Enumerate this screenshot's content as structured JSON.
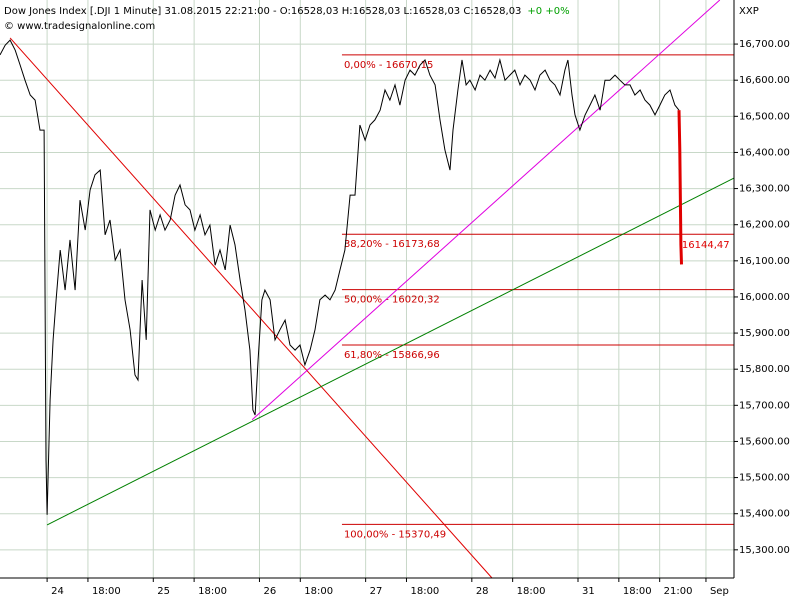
{
  "chart_data": {
    "type": "line",
    "title": "Dow Jones Index [.DJI  1 Minute] 31.08.2015 22:21:00 - O:16528,03 H:16528,03 L:16528,03 C:16528,03",
    "change": "+0 +0%",
    "change_color": "#00a000",
    "source": "© www.tradesignalonline.com",
    "axis_label": "XXP",
    "xlim": [
      -173,
      2523
    ],
    "ylim": [
      15222,
      16822
    ],
    "grid": true,
    "xticks": [
      {
        "value": 0,
        "label": "24"
      },
      {
        "value": 150,
        "label": "18:00"
      },
      {
        "value": 390,
        "label": "25"
      },
      {
        "value": 540,
        "label": "18:00"
      },
      {
        "value": 780,
        "label": "26"
      },
      {
        "value": 930,
        "label": "18:00"
      },
      {
        "value": 1170,
        "label": "27"
      },
      {
        "value": 1320,
        "label": "18:00"
      },
      {
        "value": 1560,
        "label": "28"
      },
      {
        "value": 1710,
        "label": "18:00"
      },
      {
        "value": 1950,
        "label": "31"
      },
      {
        "value": 2100,
        "label": "18:00"
      },
      {
        "value": 2250,
        "label": "21:00"
      },
      {
        "value": 2420,
        "label": "Sep"
      }
    ],
    "yticks": [
      {
        "value": 15300,
        "label": "15,300.00"
      },
      {
        "value": 15400,
        "label": "15,400.00"
      },
      {
        "value": 15500,
        "label": "15,500.00"
      },
      {
        "value": 15600,
        "label": "15,600.00"
      },
      {
        "value": 15700,
        "label": "15,700.00"
      },
      {
        "value": 15800,
        "label": "15,800.00"
      },
      {
        "value": 15900,
        "label": "15,900.00"
      },
      {
        "value": 16000,
        "label": "16,000.00"
      },
      {
        "value": 16100,
        "label": "16,100.00"
      },
      {
        "value": 16200,
        "label": "16,200.00"
      },
      {
        "value": 16300,
        "label": "16,300.00"
      },
      {
        "value": 16400,
        "label": "16,400.00"
      },
      {
        "value": 16500,
        "label": "16,500.00"
      },
      {
        "value": 16600,
        "label": "16,600.00"
      },
      {
        "value": 16700,
        "label": "16,700.00"
      }
    ],
    "series": [
      {
        "color": "#000000",
        "x": [
          -173,
          -154,
          -136,
          -117,
          -99,
          -81,
          -62,
          -44,
          -26,
          -11,
          -4,
          0,
          11,
          22,
          33,
          48,
          66,
          84,
          103,
          121,
          140,
          158,
          176,
          195,
          213,
          231,
          250,
          268,
          286,
          305,
          323,
          334,
          349,
          364,
          378,
          397,
          415,
          433,
          452,
          470,
          488,
          507,
          525,
          543,
          562,
          580,
          598,
          617,
          635,
          654,
          672,
          690,
          709,
          727,
          745,
          756,
          764,
          775,
          789,
          800,
          819,
          837,
          855,
          874,
          892,
          911,
          929,
          947,
          966,
          984,
          1002,
          1021,
          1039,
          1058,
          1076,
          1094,
          1113,
          1131,
          1149,
          1168,
          1186,
          1204,
          1223,
          1241,
          1259,
          1278,
          1296,
          1315,
          1333,
          1351,
          1370,
          1388,
          1406,
          1425,
          1443,
          1461,
          1480,
          1491,
          1509,
          1524,
          1539,
          1553,
          1572,
          1590,
          1608,
          1627,
          1645,
          1663,
          1682,
          1700,
          1718,
          1737,
          1755,
          1774,
          1792,
          1810,
          1829,
          1847,
          1865,
          1884,
          1902,
          1913,
          1928,
          1939,
          1957,
          1976,
          1994,
          2012,
          2031,
          2049,
          2067,
          2086,
          2104,
          2122,
          2141,
          2159,
          2178,
          2196,
          2214,
          2233,
          2251,
          2269,
          2288,
          2306,
          2321
        ],
        "values": [
          16670,
          16697,
          16711,
          16683,
          16642,
          16600,
          16559,
          16545,
          16462,
          16462,
          15549,
          15397,
          15715,
          15881,
          15992,
          16130,
          16019,
          16158,
          16019,
          16268,
          16185,
          16296,
          16338,
          16351,
          16172,
          16213,
          16102,
          16130,
          15992,
          15909,
          15784,
          15770,
          16047,
          15881,
          16241,
          16185,
          16227,
          16185,
          16213,
          16282,
          16310,
          16255,
          16241,
          16185,
          16227,
          16172,
          16199,
          16088,
          16130,
          16075,
          16199,
          16144,
          16047,
          15964,
          15853,
          15687,
          15673,
          15826,
          15992,
          16019,
          15992,
          15881,
          15909,
          15936,
          15867,
          15853,
          15867,
          15812,
          15853,
          15909,
          15992,
          16005,
          15992,
          16019,
          16075,
          16130,
          16282,
          16282,
          16476,
          16434,
          16476,
          16490,
          16517,
          16573,
          16545,
          16587,
          16531,
          16600,
          16628,
          16614,
          16642,
          16656,
          16614,
          16587,
          16490,
          16407,
          16351,
          16462,
          16573,
          16656,
          16587,
          16600,
          16573,
          16614,
          16600,
          16628,
          16606,
          16656,
          16600,
          16614,
          16628,
          16587,
          16614,
          16600,
          16573,
          16614,
          16628,
          16600,
          16587,
          16559,
          16628,
          16656,
          16559,
          16504,
          16462,
          16504,
          16531,
          16559,
          16517,
          16600,
          16600,
          16614,
          16600,
          16587,
          16587,
          16559,
          16573,
          16545,
          16531,
          16504,
          16531,
          16559,
          16573,
          16531,
          16517
        ]
      },
      {
        "color": "#e00000",
        "x": [
          2321,
          2324,
          2328,
          2330
        ],
        "values": [
          16517,
          16407,
          16144.47,
          16090
        ]
      }
    ],
    "last_price": {
      "value": 16144.47,
      "label": "16144,47"
    },
    "fib_start": 1083,
    "fib_color": "#cc0000",
    "fib_levels": [
      {
        "value": 16670.15,
        "label": "0,00% - 16670,15"
      },
      {
        "value": 16173.68,
        "label": "38,20% - 16173,68"
      },
      {
        "value": 16020.32,
        "label": "50,00% - 16020,32"
      },
      {
        "value": 15866.96,
        "label": "61,80% - 15866,96"
      },
      {
        "value": 15370.49,
        "label": "100,00% - 15370,49"
      }
    ],
    "trend_lines": [
      {
        "color": "#e00000",
        "x": [
          -136,
          1634
        ],
        "values": [
          16717,
          15222
        ]
      },
      {
        "color": "#008000",
        "x": [
          0,
          2523
        ],
        "values": [
          15369,
          16329
        ]
      },
      {
        "color": "#e000e0",
        "x": [
          753,
          2471
        ],
        "values": [
          15660,
          16822
        ]
      }
    ]
  }
}
